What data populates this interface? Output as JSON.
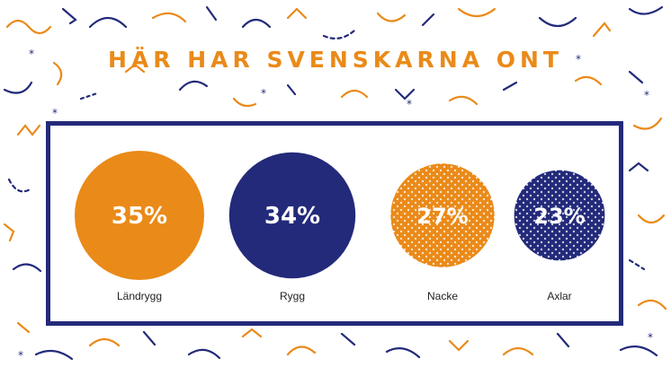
{
  "title": "HÄR HAR SVENSKARNA ONT",
  "colors": {
    "orange": "#ea8a19",
    "navy": "#232a7a",
    "background": "#ffffff",
    "label_text": "#222222"
  },
  "chart_data": {
    "type": "bubble",
    "title": "HÄR HAR SVENSKARNA ONT",
    "categories": [
      "Ländrygg",
      "Rygg",
      "Nacke",
      "Axlar"
    ],
    "values": [
      35,
      34,
      27,
      23
    ],
    "value_labels": [
      "35%",
      "34%",
      "27%",
      "23%"
    ],
    "fill_colors": [
      "#ea8a19",
      "#232a7a",
      "#ea8a19",
      "#232a7a"
    ],
    "patterns": [
      "solid",
      "solid",
      "dotted",
      "dotted"
    ],
    "grid": false,
    "legend": "none"
  }
}
